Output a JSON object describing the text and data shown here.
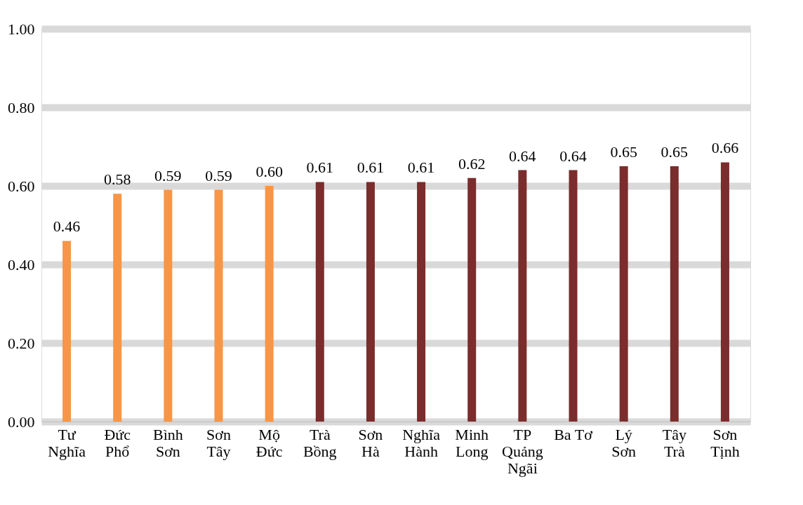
{
  "chart_data": {
    "type": "bar",
    "categories": [
      "Tư Nghĩa",
      "Đức Phổ",
      "Bình Sơn",
      "Sơn Tây",
      "Mộ Đức",
      "Trà Bồng",
      "Sơn Hà",
      "Nghĩa Hành",
      "Minh Long",
      "TP Quảng Ngãi",
      "Ba Tơ",
      "Lý Sơn",
      "Tây Trà",
      "Sơn Tịnh"
    ],
    "values": [
      0.46,
      0.58,
      0.59,
      0.59,
      0.6,
      0.61,
      0.61,
      0.61,
      0.62,
      0.64,
      0.64,
      0.65,
      0.65,
      0.66
    ],
    "value_labels": [
      "0.46",
      "0.58",
      "0.59",
      "0.59",
      "0.60",
      "0.61",
      "0.61",
      "0.61",
      "0.62",
      "0.64",
      "0.64",
      "0.65",
      "0.65",
      "0.66"
    ],
    "colors": [
      "#f79646",
      "#f79646",
      "#f79646",
      "#f79646",
      "#f79646",
      "#7b2c2c",
      "#7b2c2c",
      "#7b2c2c",
      "#7b2c2c",
      "#7b2c2c",
      "#7b2c2c",
      "#7b2c2c",
      "#7b2c2c",
      "#7b2c2c"
    ],
    "ylim": [
      0,
      1
    ],
    "yticks": [
      {
        "value": 0,
        "label": "0.00"
      },
      {
        "value": 0.2,
        "label": "0.20"
      },
      {
        "value": 0.4,
        "label": "0.40"
      },
      {
        "value": 0.6,
        "label": "0.60"
      },
      {
        "value": 0.8,
        "label": "0.80"
      },
      {
        "value": 1,
        "label": "1.00"
      }
    ],
    "grid": "y"
  }
}
